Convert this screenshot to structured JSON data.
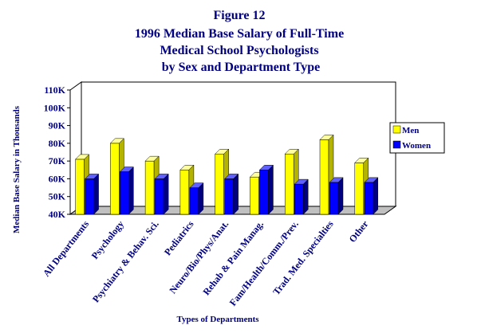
{
  "chart_data": {
    "type": "bar",
    "title": [
      "Figure 12",
      "1996 Median Base Salary of Full-Time",
      "Medical School Psychologists",
      "by Sex and Department Type"
    ],
    "xlabel": "Types of Departments",
    "ylabel": "Median Base Salary in Thousands",
    "ylim": [
      40,
      110
    ],
    "ytick_values": [
      40,
      50,
      60,
      70,
      80,
      90,
      100,
      110
    ],
    "ytick_labels": [
      "40K",
      "50K",
      "60K",
      "70K",
      "80K",
      "90K",
      "100K",
      "110K"
    ],
    "categories": [
      "All Departments",
      "Psychology",
      "Psychiatry & Behav. Sci.",
      "Pediatrics",
      "Neuro/Bio/Phys/Anat.",
      "Rehab & Pain Manag.",
      "Fam/Health/Comm./Prev.",
      "Trad. Med. Specialties",
      "Other"
    ],
    "series": [
      {
        "name": "Men",
        "color": "#ffff00",
        "side": "#b3b300",
        "top": "#ffffa0",
        "values": [
          71,
          80,
          70,
          65,
          74,
          61,
          74,
          82,
          69
        ]
      },
      {
        "name": "Women",
        "color": "#0000ff",
        "side": "#000080",
        "top": "#6060ff",
        "values": [
          60,
          64,
          60,
          55,
          60,
          65,
          57,
          58,
          58
        ]
      }
    ],
    "legend_position": "right",
    "grid": false,
    "wall_color": "#ffffff",
    "floor_color": "#c0c0c0"
  }
}
